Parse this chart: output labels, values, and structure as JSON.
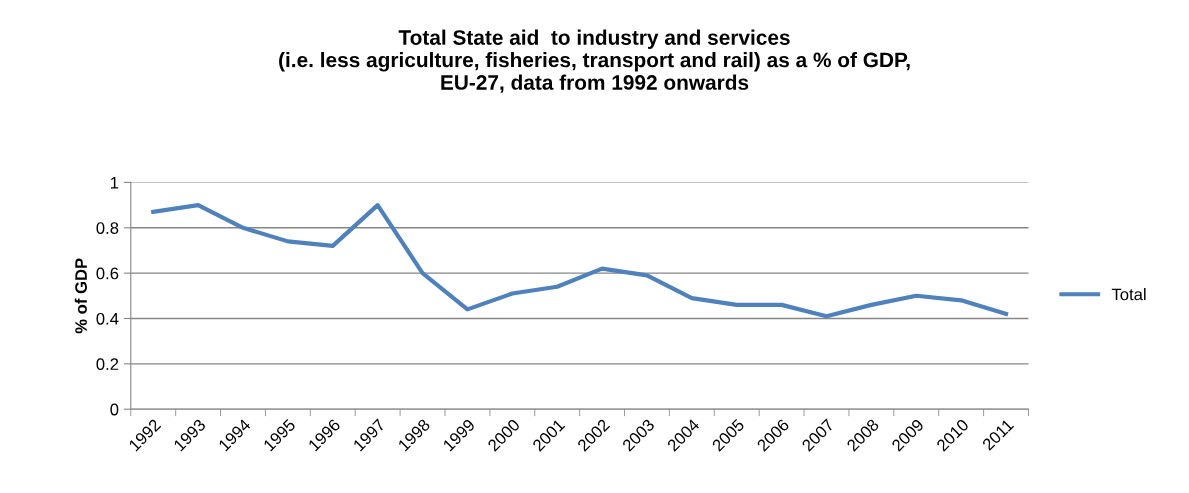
{
  "chart_data": {
    "type": "line",
    "title": "Total State aid  to industry and services\n(i.e. less agriculture, fisheries, transport and rail) as a % of GDP,\nEU-27, data from 1992 onwards",
    "ylabel": "% of GDP",
    "categories": [
      "1992",
      "1993",
      "1994",
      "1995",
      "1996",
      "1997",
      "1998",
      "1999",
      "2000",
      "2001",
      "2002",
      "2003",
      "2004",
      "2005",
      "2006",
      "2007",
      "2008",
      "2009",
      "2010",
      "2011"
    ],
    "series": [
      {
        "name": "Total",
        "color": "#4f81bd",
        "values": [
          0.87,
          0.9,
          0.8,
          0.74,
          0.72,
          0.9,
          0.6,
          0.44,
          0.51,
          0.54,
          0.62,
          0.59,
          0.49,
          0.46,
          0.46,
          0.41,
          0.46,
          0.5,
          0.48,
          0.42
        ]
      }
    ],
    "ylim": [
      0,
      1
    ],
    "yticks": [
      0,
      0.2,
      0.4,
      0.6,
      0.8,
      1
    ],
    "grid": "y",
    "legend": "right",
    "marker": "none",
    "line_style": "solid"
  }
}
